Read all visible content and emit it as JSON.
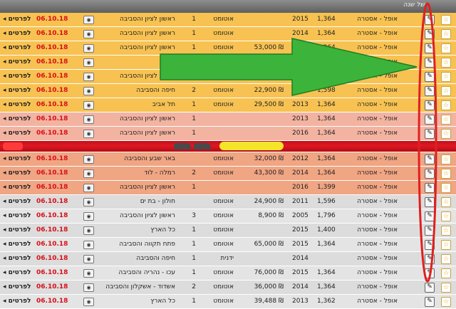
{
  "header": {
    "title": "של שנה"
  },
  "icons": {
    "favorite": "☆",
    "edit": "✎",
    "camera": "◉",
    "more": "◂"
  },
  "listings": [
    {
      "color": "yellow",
      "model": "אופל - אסטרה",
      "engine": "1,364",
      "year": "2015",
      "price": "",
      "transmission": "אוטומט",
      "hand": "1",
      "location": "ראשון לציון והסביבה",
      "date": "06.10.18",
      "more": "לפרטים"
    },
    {
      "color": "yellow",
      "model": "אופל - אסטרה",
      "engine": "1,364",
      "year": "2014",
      "price": "",
      "transmission": "אוטומט",
      "hand": "1",
      "location": "ראשון לציון והסביבה",
      "date": "06.10.18",
      "more": "לפרטים"
    },
    {
      "color": "yellow",
      "model": "אופל - אסטרה",
      "engine": "1,364",
      "year": "2014",
      "price": "53,000 ₪",
      "transmission": "אוטומט",
      "hand": "1",
      "location": "ראשון לציון והסביבה",
      "date": "06.10.18",
      "more": "לפרטים"
    },
    {
      "color": "yellow",
      "model": "אופל - אסטרה",
      "engine": "",
      "year": "",
      "price": "",
      "transmission": "",
      "hand": "",
      "location": "",
      "date": "06.10.18",
      "more": "לפרטים"
    },
    {
      "color": "yellow",
      "model": "אופל - אסטרה",
      "engine": "",
      "year": "",
      "price": "",
      "transmission": "",
      "hand": "",
      "location": "ראשון לציון והסביבה",
      "date": "06.10.18",
      "more": "לפרטים"
    },
    {
      "color": "yellow",
      "model": "אופל - אסטרה",
      "engine": "1,598",
      "year": "2011",
      "price": "22,900 ₪",
      "transmission": "אוטומט",
      "hand": "2",
      "location": "חיפה והסביבה",
      "date": "06.10.18",
      "more": "לפרטים"
    },
    {
      "color": "yellow",
      "model": "אופל - אסטרה",
      "engine": "1,364",
      "year": "2013",
      "price": "29,500 ₪",
      "transmission": "אוטומט",
      "hand": "1",
      "location": "תל אביב",
      "date": "06.10.18",
      "more": "לפרטים"
    },
    {
      "color": "pink",
      "model": "אופל - אסטרה",
      "engine": "1,364",
      "year": "2013",
      "price": "",
      "transmission": "",
      "hand": "1",
      "location": "ראשון לציון והסביבה",
      "date": "06.10.18",
      "more": "לפרטים"
    },
    {
      "color": "pink",
      "model": "אופל - אסטרה",
      "engine": "1,364",
      "year": "2016",
      "price": "",
      "transmission": "",
      "hand": "1",
      "location": "ראשון לציון והסביבה",
      "date": "06.10.18",
      "more": "לפרטים"
    },
    {
      "color": "sep"
    },
    {
      "color": "salmon",
      "model": "אופל - אסטרה",
      "engine": "1,364",
      "year": "2012",
      "price": "32,000 ₪",
      "transmission": "אוטומט",
      "hand": "",
      "location": "באר שבע והסביבה",
      "date": "06.10.18",
      "more": "לפרטים"
    },
    {
      "color": "salmon",
      "model": "אופל - אסטרה",
      "engine": "1,364",
      "year": "2014",
      "price": "43,300 ₪",
      "transmission": "אוטומט",
      "hand": "2",
      "location": "רמלה - לוד",
      "date": "06.10.18",
      "more": "לפרטים"
    },
    {
      "color": "salmon",
      "model": "אופל - אסטרה",
      "engine": "1,399",
      "year": "2016",
      "price": "",
      "transmission": "",
      "hand": "1",
      "location": "ראשון לציון והסביבה",
      "date": "06.10.18",
      "more": "לפרטים"
    },
    {
      "color": "gray",
      "model": "אופל - אסטרה",
      "engine": "1,596",
      "year": "2011",
      "price": "24,900 ₪",
      "transmission": "אוטומט",
      "hand": "",
      "location": "חולון - בת ים",
      "date": "06.10.18",
      "more": "לפרטים"
    },
    {
      "color": "gray",
      "model": "אופל - אסטרה",
      "engine": "1,796",
      "year": "2005",
      "price": "8,900 ₪",
      "transmission": "אוטומט",
      "hand": "3",
      "location": "ראשון לציון והסביבה",
      "date": "06.10.18",
      "more": "לפרטים"
    },
    {
      "color": "gray",
      "model": "אופל - אסטרה",
      "engine": "1,400",
      "year": "2015",
      "price": "",
      "transmission": "אוטומט",
      "hand": "1",
      "location": "כל הארץ",
      "date": "06.10.18",
      "more": "לפרטים"
    },
    {
      "color": "gray",
      "model": "אופל - אסטרה",
      "engine": "1,364",
      "year": "2015",
      "price": "65,000 ₪",
      "transmission": "אוטומט",
      "hand": "1",
      "location": "פתח תקווה והסביבה",
      "date": "06.10.18",
      "more": "לפרטים"
    },
    {
      "color": "gray",
      "model": "אופל - אסטרה",
      "engine": "",
      "year": "2014",
      "price": "",
      "transmission": "ידנית",
      "hand": "1",
      "location": "חיפה והסביבה",
      "date": "06.10.18",
      "more": "לפרטים"
    },
    {
      "color": "gray",
      "model": "אופל - אסטרה",
      "engine": "1,364",
      "year": "2015",
      "price": "76,000 ₪",
      "transmission": "אוטומט",
      "hand": "1",
      "location": "עכו - נהריה והסביבה",
      "date": "06.10.18",
      "more": "לפרטים"
    },
    {
      "color": "gray",
      "model": "אופל - אסטרה",
      "engine": "1,364",
      "year": "2014",
      "price": "36,000 ₪",
      "transmission": "אוטומט",
      "hand": "2",
      "location": "אשדוד - אשקלון והסביבה",
      "date": "06.10.18",
      "more": "לפרטים"
    },
    {
      "color": "gray",
      "model": "אופל - אסטרה",
      "engine": "1,362",
      "year": "2013",
      "price": "39,488 ₪",
      "transmission": "אוטומט",
      "hand": "1",
      "location": "כל הארץ",
      "date": "06.10.18",
      "more": "לפרטים"
    }
  ],
  "annotations": {
    "arrow_color": "#3cb43c",
    "ellipse_color": "#e02020"
  }
}
